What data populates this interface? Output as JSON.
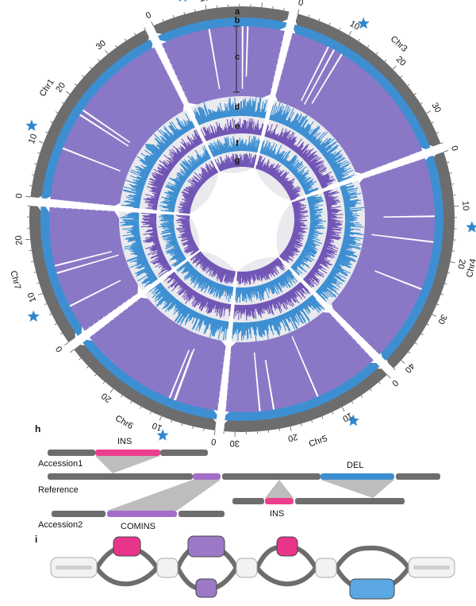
{
  "colors": {
    "grey": "#6d6d6d",
    "lightgrey": "#cfcfcf",
    "blue": "#3d8fd1",
    "purple": "#8a78c7",
    "purple_dark": "#7256b5",
    "pink": "#ec3d8c",
    "violet": "#a36cc6",
    "star": "#2f86cc"
  },
  "chromosomes": [
    {
      "name": "Chr1",
      "length": 38,
      "ticks": [
        "0",
        "10",
        "20",
        "30"
      ],
      "star": true
    },
    {
      "name": "Chr2",
      "length": 25,
      "ticks": [
        "0",
        "10",
        "20"
      ],
      "star": true
    },
    {
      "name": "Chr3",
      "length": 36,
      "ticks": [
        "0",
        "10",
        "20",
        "30"
      ],
      "star": true
    },
    {
      "name": "Chr4",
      "length": 42,
      "ticks": [
        "0",
        "10",
        "20",
        "30",
        "40"
      ],
      "star": true
    },
    {
      "name": "Chr5",
      "length": 32,
      "ticks": [
        "0",
        "10",
        "20",
        "30"
      ],
      "star": true
    },
    {
      "name": "Chr6",
      "length": 30,
      "ticks": [
        "0",
        "10",
        "20"
      ],
      "star": true
    },
    {
      "name": "Chr7",
      "length": 26,
      "ticks": [
        "0",
        "10",
        "20"
      ],
      "star": true
    }
  ],
  "track_labels": [
    "a",
    "b",
    "c",
    "d",
    "e",
    "f",
    "g"
  ],
  "panel_h": {
    "label": "h",
    "accession1": "Accession1",
    "reference": "Reference",
    "accession2": "Accession2",
    "ins_label_top": "INS",
    "del_label": "DEL",
    "ins_label_bottom": "INS",
    "comins_label": "COMINS"
  },
  "panel_i": {
    "label": "i"
  }
}
